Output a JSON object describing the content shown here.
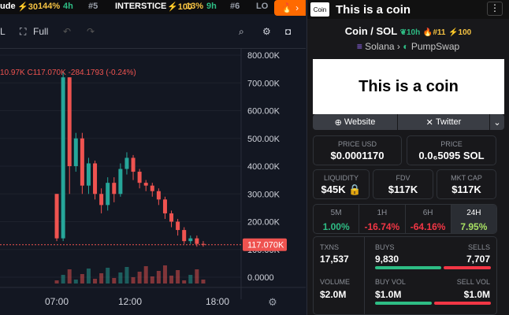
{
  "ticker": {
    "i1": "ude",
    "i1_s": "⚡30",
    "i1_p": "144%",
    "i1_u": "4h",
    "i2": "#5",
    "i2_n": "INTERSTICE",
    "i2_s": "⚡100",
    "i2_p": "13%",
    "i2_u": "9h",
    "i3": "#6",
    "i3_n": "LO"
  },
  "toolbar": {
    "l": "L",
    "full": "Full"
  },
  "chart_data": {
    "type": "bar",
    "title": "",
    "xlabel": "",
    "ylabel": "",
    "x": [
      "07:00",
      "12:00",
      "18:00"
    ],
    "yticks": [
      "800.00K",
      "700.00K",
      "600.00K",
      "500.00K",
      "400.00K",
      "300.00K",
      "200.00K",
      "100.00K",
      "0.0000"
    ],
    "ylim": [
      0,
      800000
    ],
    "last_price_label": "117.070K",
    "ohlc_legend": "10.97K  C117.070K  -284.1793 (-0.24%)",
    "candles": [
      [
        300000,
        140000,
        300000,
        130000
      ],
      [
        140000,
        720000,
        740000,
        130000
      ],
      [
        720000,
        400000,
        720000,
        300000
      ],
      [
        400000,
        500000,
        520000,
        380000
      ],
      [
        500000,
        330000,
        520000,
        300000
      ],
      [
        330000,
        410000,
        430000,
        300000
      ],
      [
        410000,
        300000,
        420000,
        280000
      ],
      [
        300000,
        260000,
        320000,
        230000
      ],
      [
        260000,
        340000,
        360000,
        240000
      ],
      [
        340000,
        300000,
        360000,
        270000
      ],
      [
        300000,
        390000,
        410000,
        290000
      ],
      [
        390000,
        430000,
        450000,
        370000
      ],
      [
        430000,
        380000,
        440000,
        350000
      ],
      [
        380000,
        340000,
        390000,
        320000
      ],
      [
        340000,
        330000,
        350000,
        310000
      ],
      [
        330000,
        310000,
        340000,
        290000
      ],
      [
        310000,
        280000,
        320000,
        260000
      ],
      [
        280000,
        230000,
        290000,
        210000
      ],
      [
        230000,
        200000,
        240000,
        180000
      ],
      [
        200000,
        170000,
        210000,
        150000
      ],
      [
        170000,
        130000,
        180000,
        120000
      ],
      [
        130000,
        140000,
        150000,
        120000
      ],
      [
        140000,
        120000,
        150000,
        110000
      ],
      [
        120000,
        117070,
        130000,
        110000
      ]
    ]
  },
  "panel": {
    "title": "This is a coin",
    "logo": "Coin",
    "pair": "Coin / SOL",
    "age": "10h",
    "rank": "#11",
    "score": "100",
    "chain": "Solana",
    "dex": "PumpSwap",
    "banner": "This is a coin",
    "website": "Website",
    "twitter": "Twitter",
    "price_usd_l": "PRICE USD",
    "price_usd": "$0.0001170",
    "price_l": "PRICE",
    "price": "0.0₆5095 SOL",
    "liq_l": "LIQUIDITY",
    "liq": "$45K",
    "fdv_l": "FDV",
    "fdv": "$117K",
    "mcap_l": "MKT CAP",
    "mcap": "$117K",
    "tabs": [
      {
        "l": "5M",
        "v": "1.00%"
      },
      {
        "l": "1H",
        "v": "-16.74%"
      },
      {
        "l": "6H",
        "v": "-64.16%"
      },
      {
        "l": "24H",
        "v": "7.95%"
      }
    ],
    "txns_l": "TXNS",
    "txns": "17,537",
    "buys_l": "BUYS",
    "buys": "9,830",
    "sells_l": "SELLS",
    "sells": "7,707",
    "vol_l": "VOLUME",
    "vol": "$2.0M",
    "bvol_l": "BUY VOL",
    "bvol": "$1.0M",
    "svol_l": "SELL VOL",
    "svol": "$1.0M"
  }
}
